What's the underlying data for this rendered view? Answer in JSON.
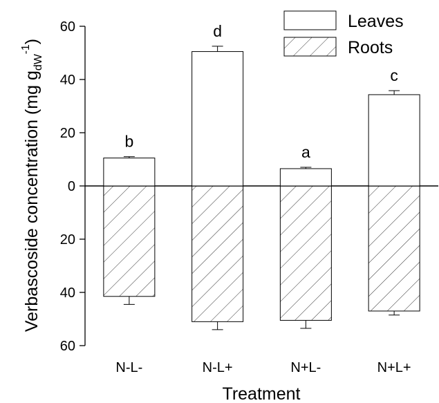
{
  "chart_data": {
    "type": "bar",
    "xlabel": "Treatment",
    "ylabel": "Verbascoside concentration (mg g",
    "ylabel_sub": "dW",
    "ylabel_sup": "-1",
    "ylabel_close": ")",
    "ylim": [
      -60,
      60
    ],
    "yticks": [
      60,
      40,
      20,
      0,
      20,
      40,
      60
    ],
    "categories": [
      "N-L-",
      "N-L+",
      "N+L-",
      "N+L+"
    ],
    "series": [
      {
        "name": "Leaves",
        "values": [
          10.5,
          50.5,
          6.5,
          34.3
        ],
        "errors": [
          0.5,
          2.0,
          0.5,
          1.5
        ],
        "fill": "none"
      },
      {
        "name": "Roots",
        "values": [
          41.5,
          51.0,
          50.5,
          47.0
        ],
        "errors": [
          3.0,
          3.0,
          3.0,
          1.5
        ],
        "fill": "hatch"
      }
    ],
    "significance_labels": [
      "b",
      "d",
      "a",
      "c"
    ],
    "legend_position": "top-right",
    "grid": false
  }
}
